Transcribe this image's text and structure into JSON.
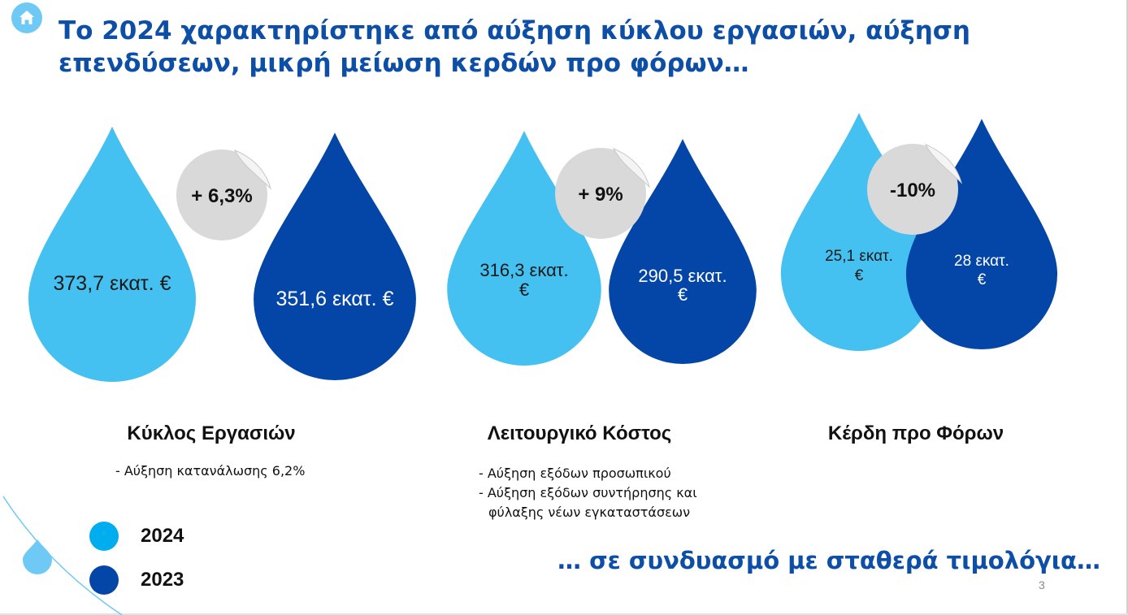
{
  "title": "Το 2024 χαρακτηρίστηκε από αύξηση κύκλου εργασιών, αύξηση επενδύσεων, μικρή μείωση κερδών προ φόρων…",
  "footer": "… σε συνδυασμό με σταθερά τιμολόγια…",
  "page_number": "3",
  "icon": "home-icon",
  "colors": {
    "accent": "#0d4ea6",
    "y2024": "#45c1f1",
    "y2023": "#0346a8",
    "badge": "#d9d9d9"
  },
  "legend": [
    {
      "label": "2024",
      "color": "#45c1f1"
    },
    {
      "label": "2023",
      "color": "#0346a8"
    }
  ],
  "chart_data": {
    "type": "bar",
    "categories": [
      "Κύκλος Εργασιών",
      "Λειτουργικό Κόστος",
      "Κέρδη προ Φόρων"
    ],
    "unit": "εκατ. €",
    "series": [
      {
        "name": "2024",
        "values": [
          373.7,
          316.3,
          25.1
        ]
      },
      {
        "name": "2023",
        "values": [
          351.6,
          290.5,
          28
        ]
      }
    ],
    "value_labels": {
      "2024": [
        "373,7 εκατ. €",
        "316,3 εκατ. €",
        "25,1 εκατ. €"
      ],
      "2023": [
        "351,6 εκατ. €",
        "290,5 εκατ. €",
        "28 εκατ. €"
      ]
    },
    "changes": [
      "+ 6,3%",
      "+ 9%",
      "-10%"
    ],
    "notes": [
      [
        "- Αύξηση κατανάλωσης 6,2%"
      ],
      [
        "- Αύξηση εξόδων προσωπικού",
        "- Αύξηση εξόδων συντήρησης και",
        "φύλαξης νέων εγκαταστάσεων"
      ],
      []
    ]
  }
}
